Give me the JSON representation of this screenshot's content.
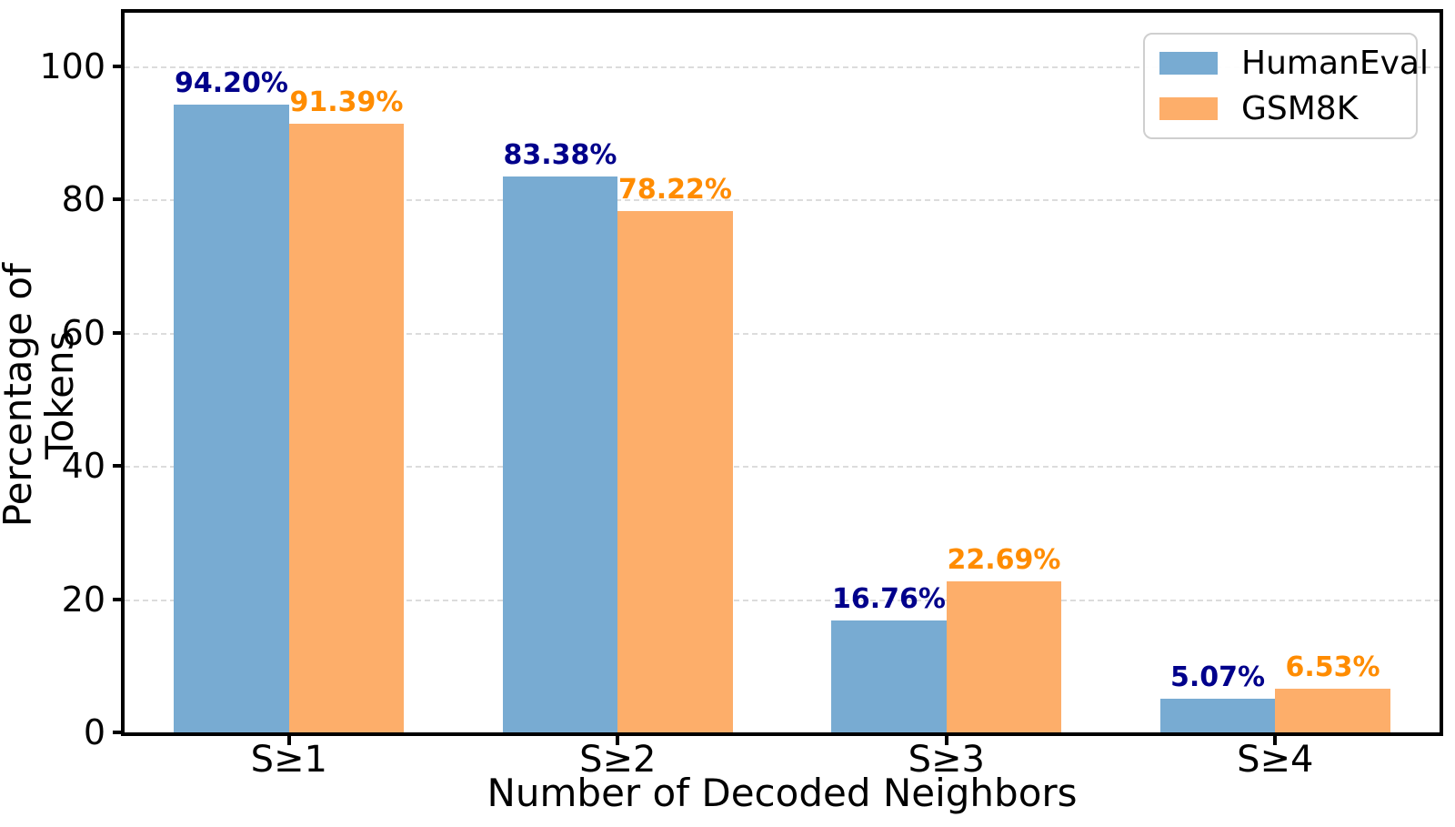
{
  "chart_data": {
    "type": "bar",
    "title": "",
    "xlabel": "Number of Decoded Neighbors",
    "ylabel": "Percentage of Tokens",
    "categories": [
      "S≥1",
      "S≥2",
      "S≥3",
      "S≥4"
    ],
    "series": [
      {
        "name": "HumanEval",
        "color": "#78abd2",
        "label_color": "#00008b",
        "values": [
          94.2,
          83.38,
          16.76,
          5.07
        ],
        "labels": [
          "94.20%",
          "83.38%",
          "16.76%",
          "5.07%"
        ]
      },
      {
        "name": "GSM8K",
        "color": "#fdae6a",
        "label_color": "#ff8c00",
        "values": [
          91.39,
          78.22,
          22.69,
          6.53
        ],
        "labels": [
          "91.39%",
          "78.22%",
          "22.69%",
          "6.53%"
        ]
      }
    ],
    "y_ticks": [
      0,
      20,
      40,
      60,
      80,
      100
    ],
    "ylim": [
      0,
      108
    ],
    "bar_width_fraction": 0.35,
    "grid": "dashed-horizontal",
    "legend_position": "top-right",
    "colors": {
      "spine": "#000000",
      "gridline": "#dcdcdc",
      "background": "#ffffff"
    }
  }
}
